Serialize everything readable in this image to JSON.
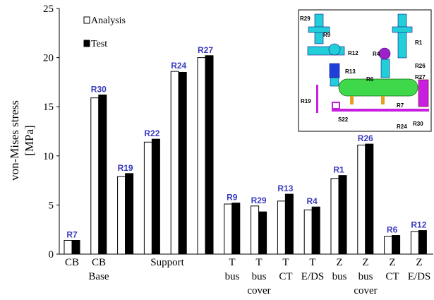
{
  "chart_data": {
    "type": "bar",
    "ylabel_lines": [
      "von-Mises stress",
      "[MPa]"
    ],
    "ylim": [
      0,
      25
    ],
    "yticks": [
      0,
      5,
      10,
      15,
      20,
      25
    ],
    "grid": false,
    "legend_position": "top-left",
    "series": [
      {
        "name": "Analysis",
        "values": [
          1.4,
          15.9,
          7.9,
          11.4,
          18.6,
          20.0,
          5.1,
          4.9,
          5.4,
          4.5,
          7.7,
          11.1,
          1.8,
          2.3
        ]
      },
      {
        "name": "Test",
        "values": [
          1.4,
          16.2,
          8.2,
          11.7,
          18.5,
          20.2,
          5.2,
          4.3,
          6.1,
          4.8,
          8.0,
          11.2,
          1.9,
          2.4
        ]
      }
    ],
    "bar_labels": [
      "R7",
      "R30",
      "R19",
      "R22",
      "R24",
      "R27",
      "R9",
      "R29",
      "R13",
      "R4",
      "R1",
      "R26",
      "R6",
      "R12"
    ],
    "category_labels": [
      "CB",
      "CB Base",
      "Support",
      "T bus",
      "T bus cover",
      "T CT",
      "T E/DS",
      "Z bus",
      "Z bus cover",
      "Z CT",
      "Z E/DS"
    ],
    "inset_labels": [
      "R29",
      "R9",
      "R12",
      "R4",
      "R1",
      "R26",
      "R27",
      "R13",
      "R6",
      "R19",
      "R7",
      "S22",
      "R24",
      "R30"
    ]
  },
  "colors": {
    "analysis_fill": "#ffffff",
    "test_fill": "#000000",
    "bar_label": "#3b3bbf"
  }
}
